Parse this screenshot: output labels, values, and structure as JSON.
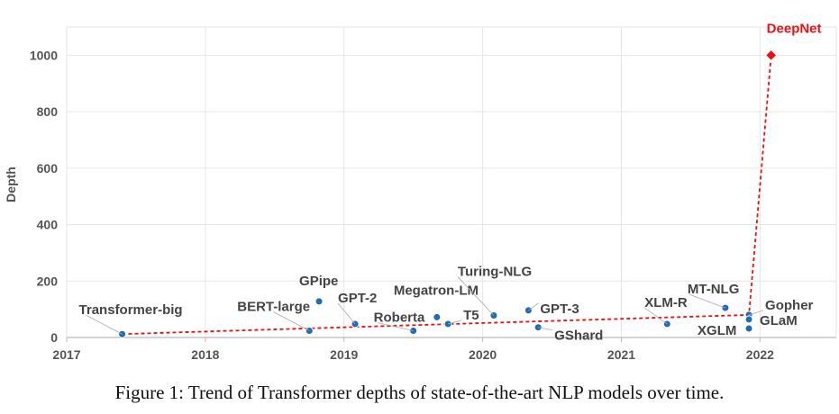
{
  "chart_data": {
    "type": "scatter",
    "ylabel": "Depth",
    "xlabel": "",
    "xlim": [
      2017.0,
      2022.55
    ],
    "ylim": [
      0,
      1100
    ],
    "xticks": [
      "2017",
      "2018",
      "2019",
      "2020",
      "2021",
      "2022"
    ],
    "yticks": [
      "0",
      "200",
      "400",
      "600",
      "800",
      "1000"
    ],
    "grid": true,
    "colors": {
      "point": "#1f6bb5",
      "highlight": "#ee1111",
      "trend": "#ee1111",
      "grid": "#e6e6e6",
      "axis": "#bbbbbb"
    },
    "points": [
      {
        "name": "Transformer-big",
        "x": 2017.4,
        "y": 12
      },
      {
        "name": "BERT-large",
        "x": 2018.75,
        "y": 24
      },
      {
        "name": "GPipe",
        "x": 2018.82,
        "y": 128
      },
      {
        "name": "GPT-2",
        "x": 2019.08,
        "y": 48
      },
      {
        "name": "Roberta",
        "x": 2019.5,
        "y": 24
      },
      {
        "name": "Megatron-LM",
        "x": 2019.67,
        "y": 72
      },
      {
        "name": "T5",
        "x": 2019.75,
        "y": 48
      },
      {
        "name": "Turing-NLG",
        "x": 2020.08,
        "y": 78
      },
      {
        "name": "GPT-3",
        "x": 2020.33,
        "y": 96
      },
      {
        "name": "GShard",
        "x": 2020.4,
        "y": 36
      },
      {
        "name": "XLM-R",
        "x": 2021.33,
        "y": 48
      },
      {
        "name": "MT-NLG",
        "x": 2021.75,
        "y": 105
      },
      {
        "name": "Gopher",
        "x": 2021.92,
        "y": 80
      },
      {
        "name": "GLaM",
        "x": 2021.92,
        "y": 64
      },
      {
        "name": "XGLM",
        "x": 2021.92,
        "y": 32
      },
      {
        "name": "DeepNet",
        "x": 2022.08,
        "y": 1000,
        "highlight": true
      }
    ],
    "trend_line": [
      {
        "x": 2017.4,
        "y": 12
      },
      {
        "x": 2021.92,
        "y": 80
      },
      {
        "x": 2022.08,
        "y": 1000
      }
    ]
  },
  "caption": "Figure 1: Trend of Transformer depths of state-of-the-art NLP models over time."
}
